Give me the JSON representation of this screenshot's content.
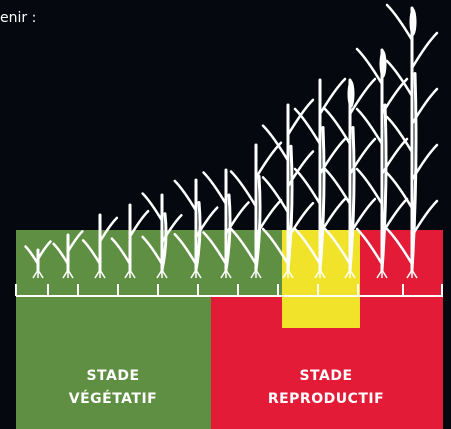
{
  "header_text": "enir :",
  "stages": [
    {
      "line1": "STADE",
      "line2": "VÉGÉTATIF"
    },
    {
      "line1": "STADE",
      "line2": "REPRODUCTIF"
    }
  ]
}
